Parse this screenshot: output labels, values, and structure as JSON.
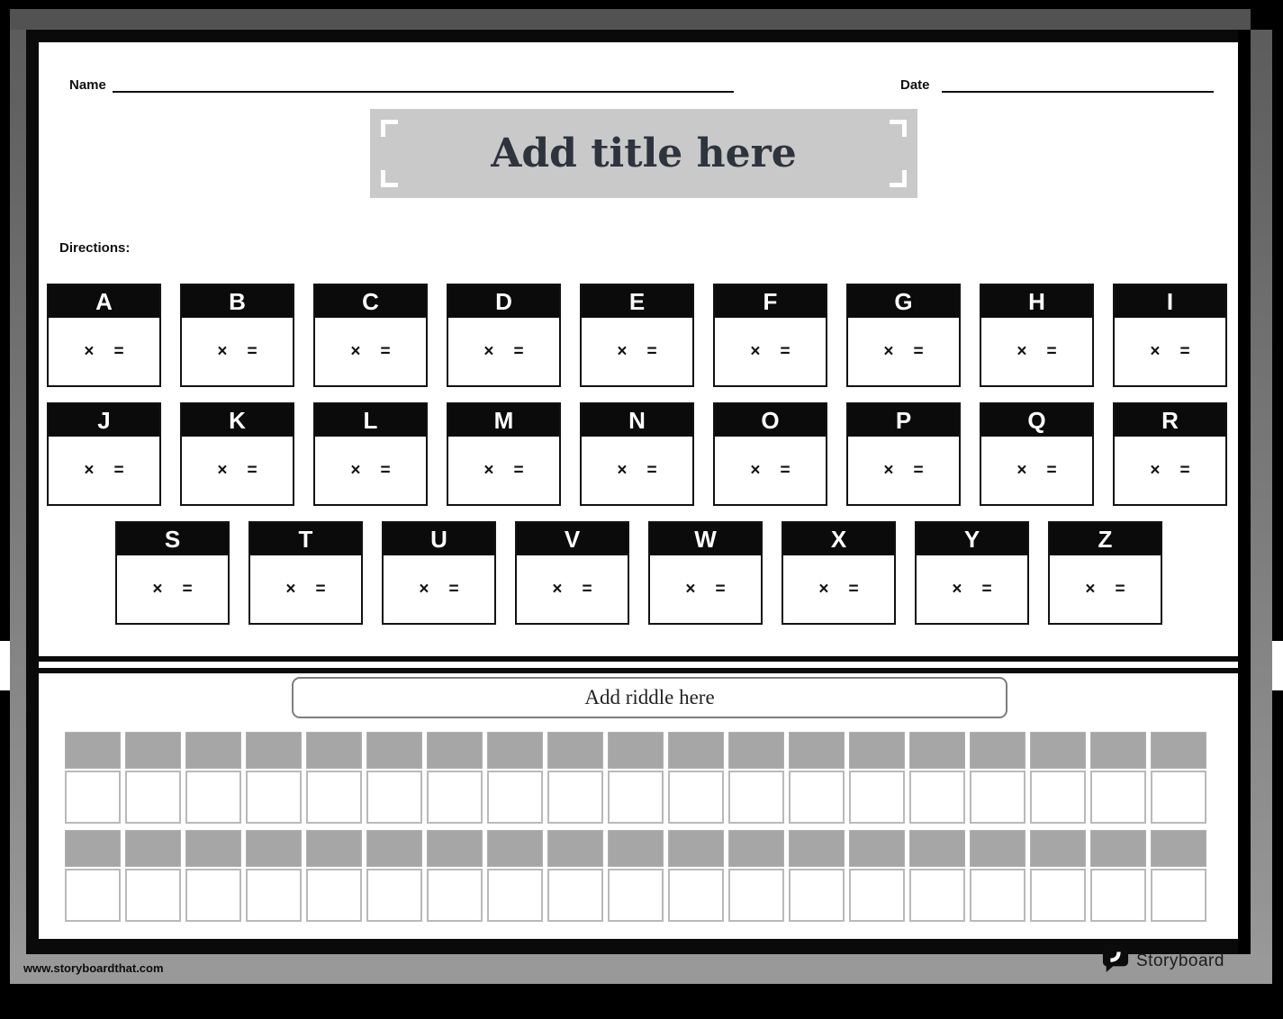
{
  "header": {
    "name_label": "Name",
    "date_label": "Date"
  },
  "title": {
    "text": "Add title here"
  },
  "directions": {
    "label": "Directions:"
  },
  "cards": {
    "multiply": "×",
    "equals": "=",
    "rows": [
      {
        "letters": [
          "A",
          "B",
          "C",
          "D",
          "E",
          "F",
          "G",
          "H",
          "I"
        ]
      },
      {
        "letters": [
          "J",
          "K",
          "L",
          "M",
          "N",
          "O",
          "P",
          "Q",
          "R"
        ]
      },
      {
        "letters": [
          "S",
          "T",
          "U",
          "V",
          "W",
          "X",
          "Y",
          "Z"
        ]
      }
    ]
  },
  "riddle": {
    "placeholder": "Add riddle here"
  },
  "answer_grid": {
    "rows": 2,
    "columns": 19
  },
  "footer": {
    "url": "www.storyboardthat.com",
    "brand": "Storyboard"
  },
  "colors": {
    "top_band": "#525252",
    "side_band": "#8e8e8e",
    "bottom_band": "#999999",
    "title_box_bg": "#c9c9c9",
    "title_text": "#2e343e",
    "card_header_bg": "#0b0b0b",
    "cell_gray": "#a6a6a6",
    "cell_border": "#b3b3b3",
    "riddle_border": "#7d7d7d"
  }
}
